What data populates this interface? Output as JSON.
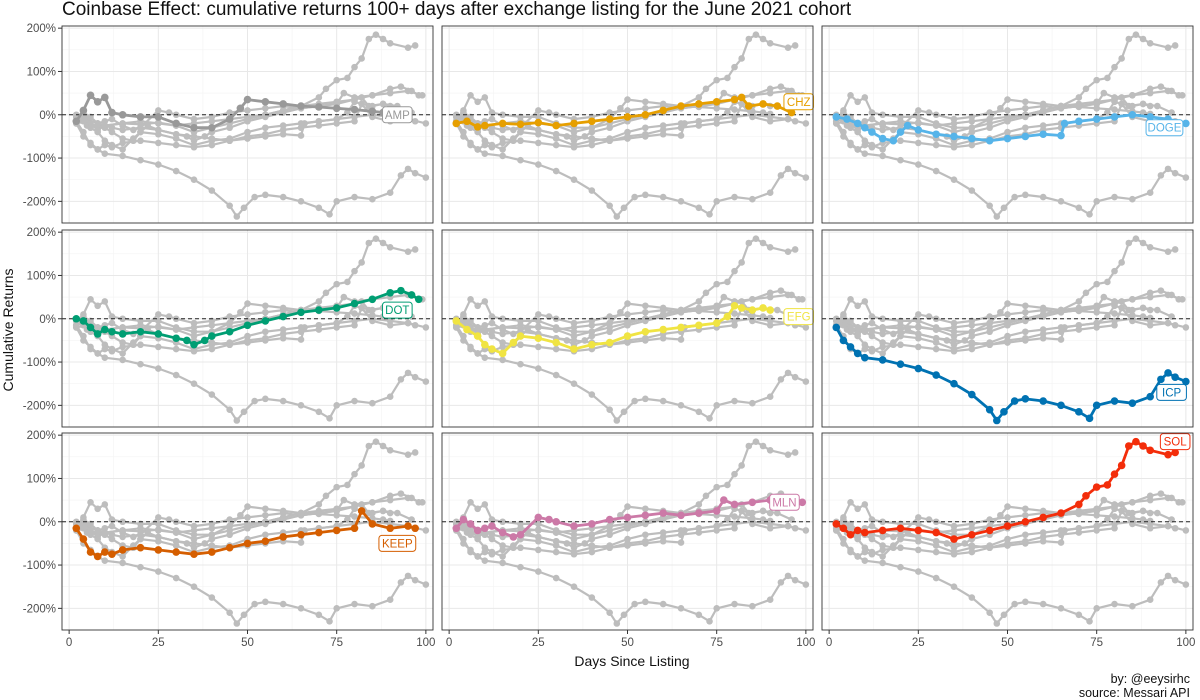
{
  "chart_data": {
    "type": "line",
    "title": "Coinbase Effect: cumulative returns 100+ days after exchange listing for the June 2021 cohort",
    "xlabel": "Days Since Listing",
    "ylabel": "Cumulative Returns",
    "x_ticks": [
      0,
      25,
      50,
      75,
      100
    ],
    "y_ticks": [
      "-200%",
      "-100%",
      "0%",
      "100%",
      "200%"
    ],
    "xlim": [
      -2,
      102
    ],
    "ylim": [
      -250,
      205
    ],
    "reference_line": 0,
    "background_series_color": "#bdbdbd",
    "caption": [
      "by: @eeysirhc",
      "source: Messari API"
    ],
    "series": [
      {
        "name": "AMP",
        "color": "#999999",
        "label_x": 92,
        "label_y": 0,
        "points": [
          [
            2,
            -15
          ],
          [
            4,
            10
          ],
          [
            6,
            45
          ],
          [
            8,
            30
          ],
          [
            10,
            40
          ],
          [
            12,
            5
          ],
          [
            15,
            0
          ],
          [
            20,
            -5
          ],
          [
            25,
            -5
          ],
          [
            30,
            -20
          ],
          [
            35,
            -30
          ],
          [
            40,
            -30
          ],
          [
            45,
            -10
          ],
          [
            48,
            15
          ],
          [
            50,
            35
          ],
          [
            55,
            30
          ],
          [
            60,
            25
          ],
          [
            65,
            20
          ],
          [
            70,
            18
          ],
          [
            75,
            15
          ],
          [
            80,
            12
          ],
          [
            85,
            8
          ],
          [
            88,
            5
          ],
          [
            90,
            2
          ]
        ]
      },
      {
        "name": "CHZ",
        "color": "#E69F00",
        "label_x": 98,
        "label_y": 30,
        "points": [
          [
            2,
            -20
          ],
          [
            5,
            -15
          ],
          [
            8,
            -28
          ],
          [
            10,
            -25
          ],
          [
            15,
            -20
          ],
          [
            20,
            -22
          ],
          [
            25,
            -18
          ],
          [
            30,
            -25
          ],
          [
            35,
            -20
          ],
          [
            40,
            -15
          ],
          [
            45,
            -10
          ],
          [
            50,
            -5
          ],
          [
            55,
            0
          ],
          [
            60,
            10
          ],
          [
            65,
            20
          ],
          [
            70,
            25
          ],
          [
            75,
            30
          ],
          [
            80,
            35
          ],
          [
            82,
            40
          ],
          [
            84,
            20
          ],
          [
            88,
            25
          ],
          [
            92,
            20
          ],
          [
            96,
            5
          ]
        ]
      },
      {
        "name": "DOGE",
        "color": "#56B4E9",
        "label_x": 94,
        "label_y": -30,
        "points": [
          [
            2,
            -5
          ],
          [
            5,
            -10
          ],
          [
            8,
            -20
          ],
          [
            10,
            -30
          ],
          [
            12,
            -40
          ],
          [
            15,
            -55
          ],
          [
            18,
            -60
          ],
          [
            20,
            -40
          ],
          [
            22,
            -25
          ],
          [
            25,
            -35
          ],
          [
            30,
            -45
          ],
          [
            35,
            -50
          ],
          [
            40,
            -55
          ],
          [
            45,
            -60
          ],
          [
            50,
            -55
          ],
          [
            55,
            -50
          ],
          [
            60,
            -45
          ],
          [
            65,
            -48
          ],
          [
            66,
            -20
          ],
          [
            70,
            -15
          ],
          [
            75,
            -10
          ],
          [
            80,
            -5
          ],
          [
            85,
            0
          ],
          [
            90,
            -5
          ],
          [
            95,
            -10
          ],
          [
            100,
            -20
          ]
        ]
      },
      {
        "name": "DOT",
        "color": "#009E73",
        "label_x": 92,
        "label_y": 20,
        "points": [
          [
            2,
            0
          ],
          [
            4,
            -5
          ],
          [
            6,
            -20
          ],
          [
            8,
            -35
          ],
          [
            10,
            -25
          ],
          [
            12,
            -30
          ],
          [
            15,
            -35
          ],
          [
            20,
            -30
          ],
          [
            25,
            -35
          ],
          [
            30,
            -45
          ],
          [
            33,
            -50
          ],
          [
            35,
            -60
          ],
          [
            38,
            -50
          ],
          [
            40,
            -40
          ],
          [
            45,
            -30
          ],
          [
            50,
            -15
          ],
          [
            55,
            -5
          ],
          [
            60,
            5
          ],
          [
            65,
            15
          ],
          [
            70,
            20
          ],
          [
            75,
            25
          ],
          [
            80,
            35
          ],
          [
            85,
            45
          ],
          [
            90,
            60
          ],
          [
            93,
            65
          ],
          [
            96,
            55
          ],
          [
            98,
            45
          ]
        ]
      },
      {
        "name": "EFG",
        "color": "#F0E442",
        "label_x": 98,
        "label_y": 5,
        "points": [
          [
            2,
            -5
          ],
          [
            5,
            -25
          ],
          [
            8,
            -40
          ],
          [
            10,
            -60
          ],
          [
            12,
            -70
          ],
          [
            15,
            -80
          ],
          [
            18,
            -55
          ],
          [
            20,
            -40
          ],
          [
            25,
            -45
          ],
          [
            30,
            -55
          ],
          [
            35,
            -70
          ],
          [
            40,
            -60
          ],
          [
            45,
            -55
          ],
          [
            50,
            -40
          ],
          [
            55,
            -30
          ],
          [
            60,
            -25
          ],
          [
            65,
            -20
          ],
          [
            70,
            -15
          ],
          [
            75,
            -10
          ],
          [
            78,
            5
          ],
          [
            80,
            30
          ],
          [
            82,
            25
          ],
          [
            85,
            20
          ],
          [
            88,
            25
          ],
          [
            90,
            20
          ]
        ]
      },
      {
        "name": "ICP",
        "color": "#0072B2",
        "label_x": 96,
        "label_y": -170,
        "points": [
          [
            2,
            -20
          ],
          [
            4,
            -50
          ],
          [
            6,
            -65
          ],
          [
            8,
            -80
          ],
          [
            10,
            -90
          ],
          [
            15,
            -95
          ],
          [
            20,
            -105
          ],
          [
            25,
            -115
          ],
          [
            30,
            -130
          ],
          [
            35,
            -150
          ],
          [
            40,
            -175
          ],
          [
            45,
            -210
          ],
          [
            47,
            -235
          ],
          [
            49,
            -215
          ],
          [
            52,
            -190
          ],
          [
            55,
            -185
          ],
          [
            60,
            -190
          ],
          [
            65,
            -200
          ],
          [
            70,
            -215
          ],
          [
            73,
            -230
          ],
          [
            75,
            -200
          ],
          [
            80,
            -190
          ],
          [
            85,
            -195
          ],
          [
            90,
            -180
          ],
          [
            93,
            -140
          ],
          [
            95,
            -125
          ],
          [
            97,
            -135
          ],
          [
            100,
            -145
          ]
        ]
      },
      {
        "name": "KEEP",
        "color": "#D55E00",
        "label_x": 92,
        "label_y": -50,
        "points": [
          [
            2,
            -15
          ],
          [
            4,
            -40
          ],
          [
            6,
            -70
          ],
          [
            8,
            -80
          ],
          [
            10,
            -70
          ],
          [
            12,
            -75
          ],
          [
            15,
            -65
          ],
          [
            20,
            -60
          ],
          [
            25,
            -65
          ],
          [
            30,
            -70
          ],
          [
            35,
            -75
          ],
          [
            40,
            -70
          ],
          [
            45,
            -60
          ],
          [
            50,
            -50
          ],
          [
            55,
            -45
          ],
          [
            60,
            -35
          ],
          [
            65,
            -30
          ],
          [
            70,
            -25
          ],
          [
            75,
            -20
          ],
          [
            80,
            -15
          ],
          [
            82,
            25
          ],
          [
            85,
            -5
          ],
          [
            90,
            -15
          ],
          [
            95,
            -10
          ],
          [
            97,
            -15
          ]
        ]
      },
      {
        "name": "MLN",
        "color": "#CC79A7",
        "label_x": 94,
        "label_y": 45,
        "points": [
          [
            2,
            -15
          ],
          [
            4,
            5
          ],
          [
            6,
            -5
          ],
          [
            8,
            -20
          ],
          [
            10,
            -15
          ],
          [
            12,
            -10
          ],
          [
            15,
            -25
          ],
          [
            18,
            -35
          ],
          [
            20,
            -30
          ],
          [
            25,
            10
          ],
          [
            28,
            5
          ],
          [
            30,
            0
          ],
          [
            35,
            -10
          ],
          [
            40,
            -5
          ],
          [
            45,
            5
          ],
          [
            50,
            10
          ],
          [
            55,
            15
          ],
          [
            60,
            20
          ],
          [
            65,
            15
          ],
          [
            70,
            20
          ],
          [
            75,
            25
          ],
          [
            77,
            50
          ],
          [
            80,
            40
          ],
          [
            85,
            45
          ],
          [
            90,
            50
          ],
          [
            95,
            55
          ],
          [
            99,
            45
          ]
        ]
      },
      {
        "name": "SOL",
        "color": "#F32D0A",
        "label_x": 97,
        "label_y": 185,
        "points": [
          [
            2,
            -5
          ],
          [
            4,
            -15
          ],
          [
            6,
            -30
          ],
          [
            8,
            -20
          ],
          [
            10,
            -25
          ],
          [
            15,
            -20
          ],
          [
            20,
            -15
          ],
          [
            25,
            -20
          ],
          [
            30,
            -25
          ],
          [
            35,
            -40
          ],
          [
            40,
            -30
          ],
          [
            45,
            -20
          ],
          [
            50,
            -10
          ],
          [
            55,
            0
          ],
          [
            60,
            10
          ],
          [
            65,
            20
          ],
          [
            70,
            40
          ],
          [
            72,
            60
          ],
          [
            75,
            80
          ],
          [
            78,
            85
          ],
          [
            80,
            110
          ],
          [
            82,
            130
          ],
          [
            84,
            175
          ],
          [
            86,
            185
          ],
          [
            88,
            175
          ],
          [
            90,
            165
          ],
          [
            95,
            155
          ],
          [
            97,
            160
          ]
        ]
      }
    ]
  }
}
